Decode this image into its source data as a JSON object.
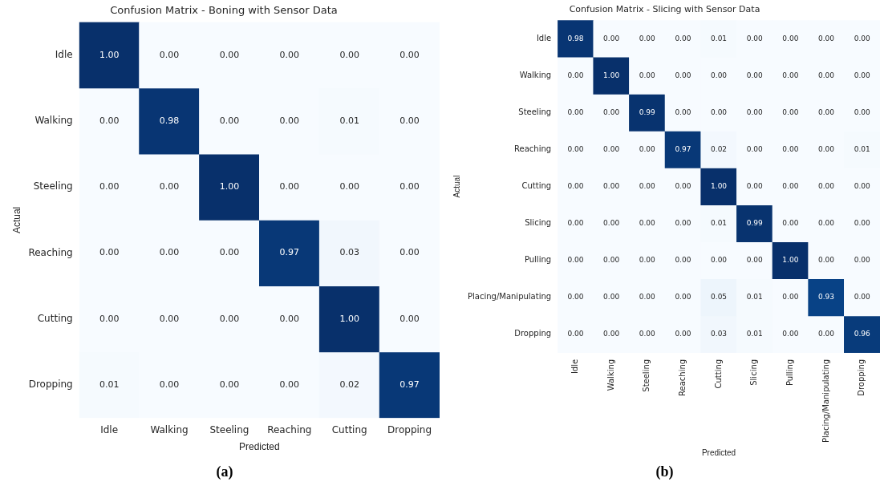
{
  "chart_data": [
    {
      "type": "heatmap",
      "title": "Confusion Matrix - Boning with Sensor Data",
      "xlabel": "Predicted",
      "ylabel": "Actual",
      "categories": [
        "Idle",
        "Walking",
        "Steeling",
        "Reaching",
        "Cutting",
        "Dropping"
      ],
      "y_categories": [
        "Idle",
        "Walking",
        "Steeling",
        "Reaching",
        "Cutting",
        "Dropping"
      ],
      "cells": [
        [
          1.0,
          0.0,
          0.0,
          0.0,
          0.0,
          0.0
        ],
        [
          0.0,
          0.98,
          0.0,
          0.0,
          0.01,
          0.0
        ],
        [
          0.0,
          0.0,
          1.0,
          0.0,
          0.0,
          0.0
        ],
        [
          0.0,
          0.0,
          0.0,
          0.97,
          0.03,
          0.0
        ],
        [
          0.0,
          0.0,
          0.0,
          0.0,
          1.0,
          0.0
        ],
        [
          0.01,
          0.0,
          0.0,
          0.0,
          0.02,
          0.97
        ]
      ],
      "cell_labels": [
        [
          "1.00",
          "0.00",
          "0.00",
          "0.00",
          "0.00",
          "0.00"
        ],
        [
          "0.00",
          "0.98",
          "0.00",
          "0.00",
          "0.01",
          "0.00"
        ],
        [
          "0.00",
          "0.00",
          "1.00",
          "0.00",
          "0.00",
          "0.00"
        ],
        [
          "0.00",
          "0.00",
          "0.00",
          "0.97",
          "0.03",
          "0.00"
        ],
        [
          "0.00",
          "0.00",
          "0.00",
          "0.00",
          "1.00",
          "0.00"
        ],
        [
          "0.01",
          "0.00",
          "0.00",
          "0.00",
          "0.02",
          "0.97"
        ]
      ],
      "data_labels": true,
      "annotations": [
        "(a)"
      ]
    },
    {
      "type": "heatmap",
      "title": "Confusion Matrix - Slicing with Sensor Data",
      "xlabel": "Predicted",
      "ylabel": "Actual",
      "categories": [
        "Idle",
        "Walking",
        "Steeling",
        "Reaching",
        "Cutting",
        "Slicing",
        "Pulling",
        "Placing/Manipulating",
        "Dropping"
      ],
      "y_categories": [
        "Idle",
        "Walking",
        "Steeling",
        "Reaching",
        "Cutting",
        "Slicing",
        "Pulling",
        "Placing/Manipulating",
        "Dropping"
      ],
      "cells": [
        [
          0.98,
          0.0,
          0.0,
          0.0,
          0.01,
          0.0,
          0.0,
          0.0,
          0.0
        ],
        [
          0.0,
          1.0,
          0.0,
          0.0,
          0.0,
          0.0,
          0.0,
          0.0,
          0.0
        ],
        [
          0.0,
          0.0,
          0.99,
          0.0,
          0.0,
          0.0,
          0.0,
          0.0,
          0.0
        ],
        [
          0.0,
          0.0,
          0.0,
          0.97,
          0.02,
          0.0,
          0.0,
          0.0,
          0.01
        ],
        [
          0.0,
          0.0,
          0.0,
          0.0,
          1.0,
          0.0,
          0.0,
          0.0,
          0.0
        ],
        [
          0.0,
          0.0,
          0.0,
          0.0,
          0.01,
          0.99,
          0.0,
          0.0,
          0.0
        ],
        [
          0.0,
          0.0,
          0.0,
          0.0,
          0.0,
          0.0,
          1.0,
          0.0,
          0.0
        ],
        [
          0.0,
          0.0,
          0.0,
          0.0,
          0.05,
          0.01,
          0.0,
          0.93,
          0.0
        ],
        [
          0.0,
          0.0,
          0.0,
          0.0,
          0.03,
          0.01,
          0.0,
          0.0,
          0.96
        ]
      ],
      "cell_labels": [
        [
          "0.98",
          "0.00",
          "0.00",
          "0.00",
          "0.01",
          "0.00",
          "0.00",
          "0.00",
          "0.00"
        ],
        [
          "0.00",
          "1.00",
          "0.00",
          "0.00",
          "0.00",
          "0.00",
          "0.00",
          "0.00",
          "0.00"
        ],
        [
          "0.00",
          "0.00",
          "0.99",
          "0.00",
          "0.00",
          "0.00",
          "0.00",
          "0.00",
          "0.00"
        ],
        [
          "0.00",
          "0.00",
          "0.00",
          "0.97",
          "0.02",
          "0.00",
          "0.00",
          "0.00",
          "0.01"
        ],
        [
          "0.00",
          "0.00",
          "0.00",
          "0.00",
          "1.00",
          "0.00",
          "0.00",
          "0.00",
          "0.00"
        ],
        [
          "0.00",
          "0.00",
          "0.00",
          "0.00",
          "0.01",
          "0.99",
          "0.00",
          "0.00",
          "0.00"
        ],
        [
          "0.00",
          "0.00",
          "0.00",
          "0.00",
          "0.00",
          "0.00",
          "1.00",
          "0.00",
          "0.00"
        ],
        [
          "0.00",
          "0.00",
          "0.00",
          "0.00",
          "0.05",
          "0.01",
          "0.00",
          "0.93",
          "0.00"
        ],
        [
          "0.00",
          "0.00",
          "0.00",
          "0.00",
          "0.03",
          "0.01",
          "0.00",
          "0.00",
          "0.96"
        ]
      ],
      "data_labels": true,
      "annotations": [
        "(b)"
      ]
    }
  ]
}
